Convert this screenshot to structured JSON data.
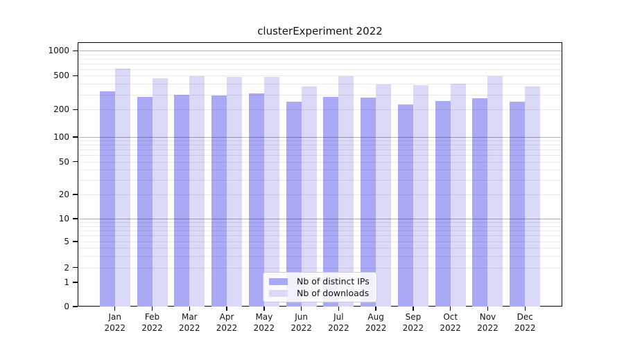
{
  "title": "clusterExperiment 2022",
  "colors": {
    "distinct_ips_bar": "#a9a9f5",
    "downloads_bar": "#dadaf8",
    "major_gridline": "#b3b3b3",
    "minor_gridline": "#e9e9e9",
    "axis": "#000000",
    "text": "#111111",
    "legend_border": "#cccccc"
  },
  "legend": {
    "items": [
      {
        "label": "Nb of distinct IPs",
        "color": "#a9a9f5"
      },
      {
        "label": "Nb of downloads",
        "color": "#dadaf8"
      }
    ]
  },
  "x_axis": {
    "months": [
      "Jan",
      "Feb",
      "Mar",
      "Apr",
      "May",
      "Jun",
      "Jul",
      "Aug",
      "Sep",
      "Oct",
      "Nov",
      "Dec"
    ],
    "year": "2022"
  },
  "chart_data": {
    "type": "bar",
    "title": "clusterExperiment 2022",
    "categories": [
      "Jan 2022",
      "Feb 2022",
      "Mar 2022",
      "Apr 2022",
      "May 2022",
      "Jun 2022",
      "Jul 2022",
      "Aug 2022",
      "Sep 2022",
      "Oct 2022",
      "Nov 2022",
      "Dec 2022"
    ],
    "series": [
      {
        "name": "Nb of distinct IPs",
        "color": "#a9a9f5",
        "values": [
          325,
          280,
          300,
          290,
          310,
          245,
          280,
          275,
          230,
          250,
          270,
          245
        ]
      },
      {
        "name": "Nb of downloads",
        "color": "#dadaf8",
        "values": [
          610,
          465,
          490,
          480,
          480,
          375,
          490,
          395,
          385,
          405,
          490,
          375
        ]
      }
    ],
    "yscale": "symlog",
    "y_ticks": [
      0,
      1,
      2,
      5,
      10,
      20,
      50,
      100,
      200,
      500,
      1000
    ],
    "ylim": [
      0,
      1400
    ],
    "grid": "horizontal log minor + darker decade lines",
    "legend_position": "lower center",
    "xlabel": "",
    "ylabel": ""
  }
}
